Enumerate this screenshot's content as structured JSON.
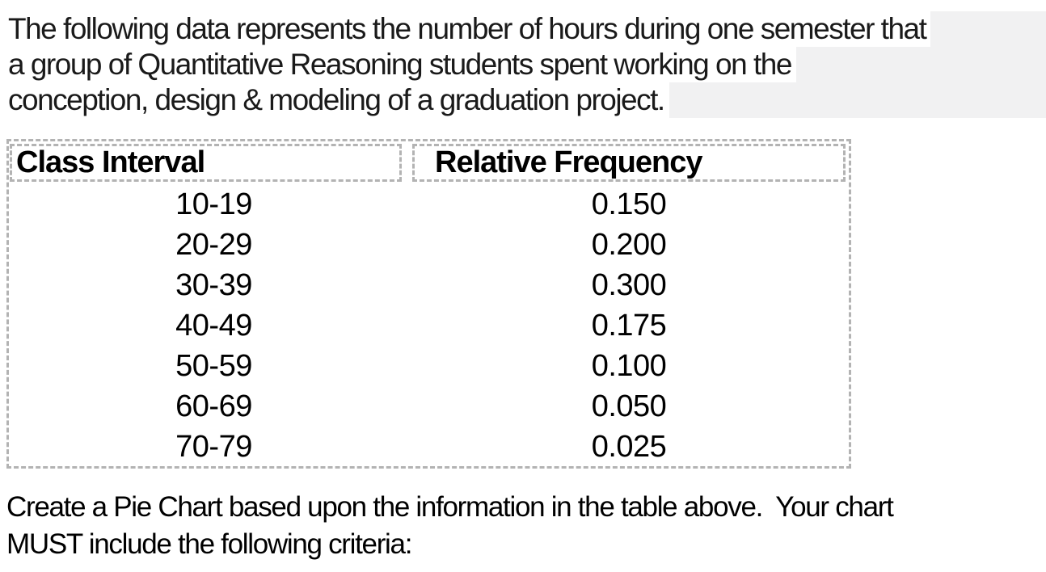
{
  "intro": {
    "lines": [
      "The following data represents the number of hours during one semester that",
      "a group of Quantitative Reasoning students spent working on the",
      "conception, design & modeling of a graduation project."
    ]
  },
  "table": {
    "headers": [
      "Class Interval",
      "Relative Frequency"
    ],
    "rows": [
      {
        "interval": "10-19",
        "freq": "0.150"
      },
      {
        "interval": "20-29",
        "freq": "0.200"
      },
      {
        "interval": "30-39",
        "freq": "0.300"
      },
      {
        "interval": "40-49",
        "freq": "0.175"
      },
      {
        "interval": "50-59",
        "freq": "0.100"
      },
      {
        "interval": "60-69",
        "freq": "0.050"
      },
      {
        "interval": "70-79",
        "freq": "0.025"
      }
    ]
  },
  "instruction": {
    "lines": [
      "Create a Pie Chart based upon the information in the table above.  Your chart",
      "MUST include the following criteria:"
    ]
  },
  "colors": {
    "highlight_block_bg": "#f1f1f2",
    "line_highlight_bg": "#ffffff",
    "dashed_border": "#b3b3b3",
    "text": "#000000"
  }
}
